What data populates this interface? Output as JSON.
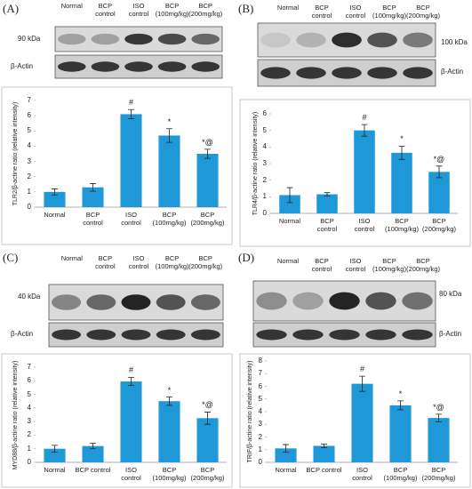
{
  "panels": [
    {
      "label": "(A)",
      "lanes": [
        "Normal",
        "BCP\ncontrol",
        "ISO\ncontrol",
        "BCP\n(100mg/kg)",
        "BCP\n(200mg/kg)"
      ],
      "blot_labels": [
        "90 kDa",
        "β-Actin"
      ]
    },
    {
      "label": "(B)",
      "lanes": [
        "Normal",
        "BCP\ncontrol",
        "ISO\ncontrol",
        "BCP\n(100mg/kg)",
        "BCP\n(200mg/kg)"
      ],
      "blot_labels": [
        "100 kDa",
        "β-Actin"
      ]
    },
    {
      "label": "(C)",
      "lanes": [
        "Normal",
        "BCP\ncontrol",
        "ISO\ncontrol",
        "BCP\n(100mg/kg)",
        "BCP\n(200mg/kg)"
      ],
      "blot_labels": [
        "40 kDa",
        "β-Actin"
      ]
    },
    {
      "label": "(D)",
      "lanes": [
        "Normal",
        "BCP\ncontrol",
        "ISO\ncontrol",
        "BCP\n(100mg/kg)",
        "BCP\n(200mg/kg)"
      ],
      "blot_labels": [
        "80 kDa",
        "β-Actin"
      ]
    }
  ],
  "chart_data": [
    {
      "type": "bar",
      "y_label": "TLR2/β-actine ratio (relative intensity)",
      "categories": [
        "Normal",
        "BCP\ncontrol",
        "ISO\ncontrol",
        "BCP\n(100mg/kg)",
        "BCP\n(200mg/kg)"
      ],
      "values": [
        1.0,
        1.3,
        6.1,
        4.7,
        3.5
      ],
      "errors": [
        0.2,
        0.25,
        0.3,
        0.45,
        0.3
      ],
      "annotations": [
        null,
        null,
        "#",
        "*",
        "*@"
      ],
      "color": "#1e98d6",
      "ylim": [
        0,
        7
      ],
      "yticks": [
        0,
        1,
        2,
        3,
        4,
        5,
        6,
        7
      ]
    },
    {
      "type": "bar",
      "y_label": "TLR4/β-actine ratio (relative intensity)",
      "categories": [
        "Normal",
        "BCP\ncontrol",
        "ISO\ncontrol",
        "BCP\n(100mg/kg)",
        "BCP\n(200mg/kg)"
      ],
      "values": [
        1.1,
        1.15,
        5.0,
        3.65,
        2.5
      ],
      "errors": [
        0.45,
        0.1,
        0.35,
        0.4,
        0.35
      ],
      "annotations": [
        null,
        null,
        "#",
        "*",
        "*@"
      ],
      "color": "#1e98d6",
      "ylim": [
        0,
        6
      ],
      "yticks": [
        0,
        1,
        2,
        3,
        4,
        5,
        6
      ]
    },
    {
      "type": "bar",
      "y_label": "MYD88/β-actine ratio (relative intensity)",
      "categories": [
        "Normal",
        "BCP control",
        "ISO\ncontrol",
        "BCP\n(100mg/kg)",
        "BCP\n(200mg/kg)"
      ],
      "values": [
        1.0,
        1.2,
        5.95,
        4.5,
        3.25
      ],
      "errors": [
        0.25,
        0.2,
        0.3,
        0.3,
        0.45
      ],
      "annotations": [
        null,
        null,
        "#",
        "*",
        "*@"
      ],
      "color": "#1e98d6",
      "ylim": [
        0,
        7
      ],
      "yticks": [
        0,
        1,
        2,
        3,
        4,
        5,
        6,
        7
      ]
    },
    {
      "type": "bar",
      "y_label": "TRIF/β-actine ratio (relative intensity)",
      "categories": [
        "Normal",
        "BCP control",
        "ISO\ncontrol",
        "BCP\n(100mg/kg)",
        "BCP\n(200mg/kg)"
      ],
      "values": [
        1.1,
        1.3,
        6.2,
        4.5,
        3.5
      ],
      "errors": [
        0.3,
        0.15,
        0.6,
        0.35,
        0.3
      ],
      "annotations": [
        null,
        null,
        "#",
        "*",
        "*@"
      ],
      "color": "#1e98d6",
      "ylim": [
        0,
        8
      ],
      "yticks": [
        0,
        1,
        2,
        3,
        4,
        5,
        6,
        7,
        8
      ]
    }
  ]
}
